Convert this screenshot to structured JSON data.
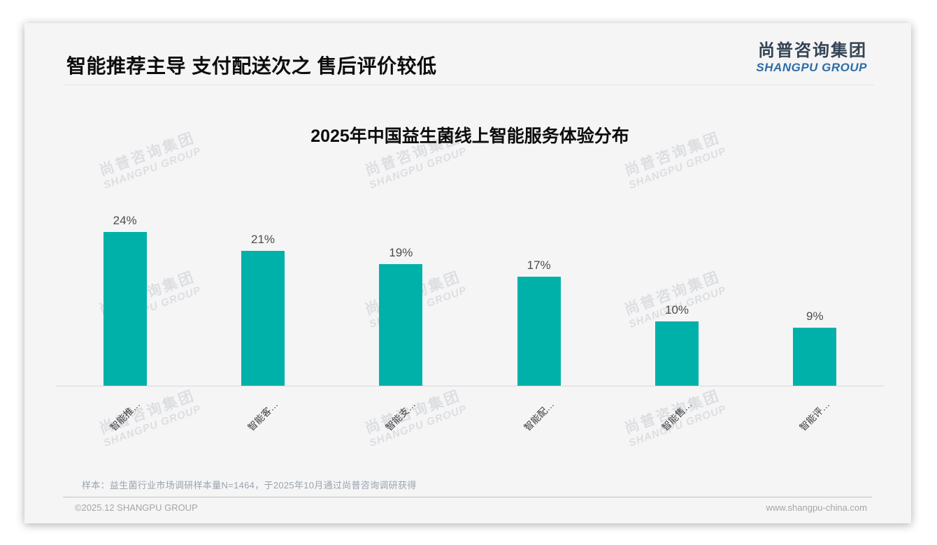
{
  "header": {
    "title": "智能推荐主导 支付配送次之 售后评价较低",
    "logo_cn": "尚普咨询集团",
    "logo_en": "SHANGPU GROUP"
  },
  "watermark": {
    "line1": "尚普咨询集团",
    "line2": "SHANGPU GROUP"
  },
  "chart_data": {
    "type": "bar",
    "title": "2025年中国益生菌线上智能服务体验分布",
    "categories": [
      "智能推…",
      "智能客…",
      "智能支…",
      "智能配…",
      "智能售…",
      "智能评…"
    ],
    "values": [
      24,
      21,
      19,
      17,
      10,
      9
    ],
    "data_labels": [
      "24%",
      "21%",
      "19%",
      "17%",
      "10%",
      "9%"
    ],
    "unit": "%",
    "bar_color": "#00b1aa",
    "value_label_color": "#4c4c4c",
    "ylim": [
      0,
      26
    ],
    "grid": false,
    "legend": false,
    "x_label_rotation": -45
  },
  "footer": {
    "note": "样本：益生菌行业市场调研样本量N=1464，于2025年10月通过尚普咨询调研获得",
    "copyright": "©2025.12 SHANGPU GROUP",
    "website": "www.shangpu-china.com"
  }
}
